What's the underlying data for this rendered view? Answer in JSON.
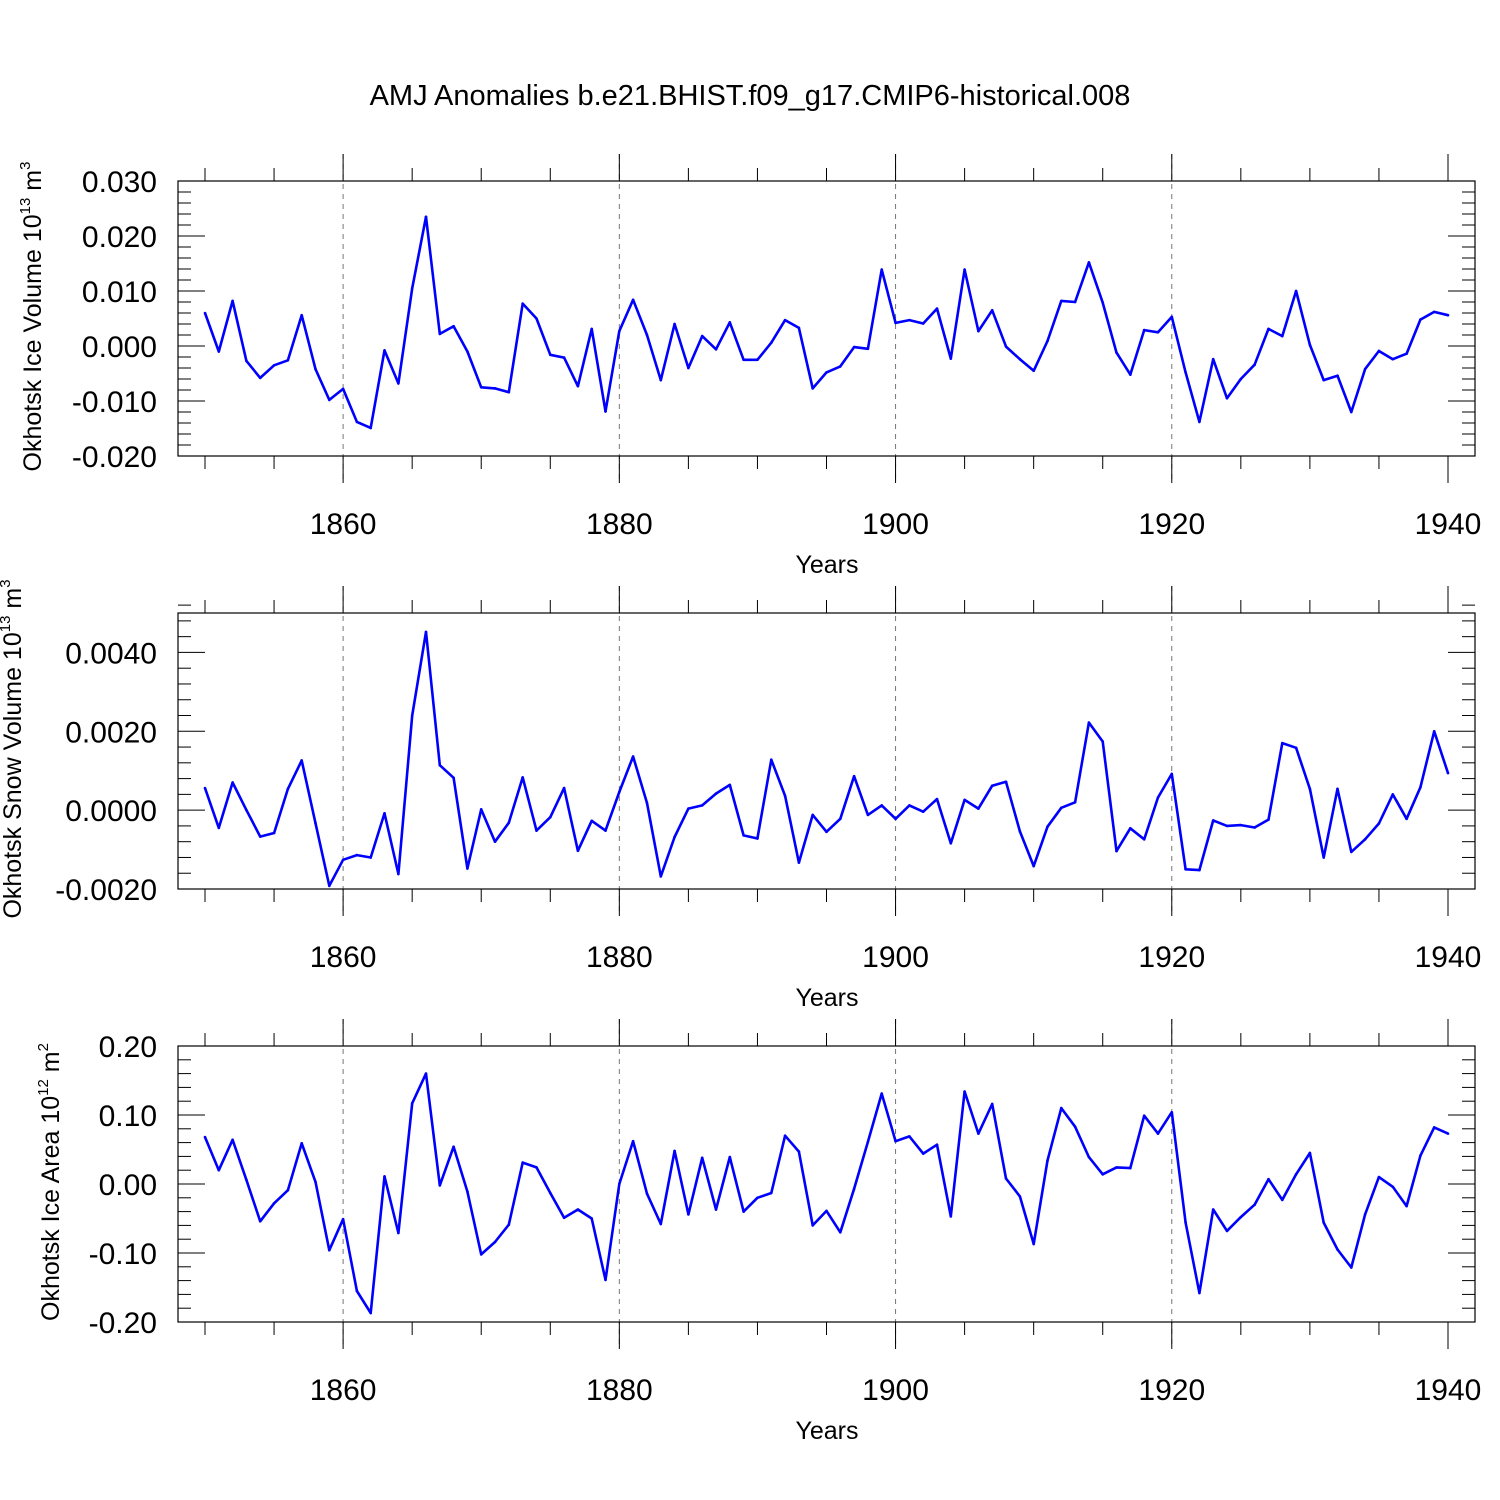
{
  "title": "AMJ Anomalies b.e21.BHIST.f09_g17.CMIP6-historical.008",
  "chart_data": [
    {
      "type": "line",
      "ylabel": "Okhotsk Ice Volume 10",
      "ylabel_exp": "13",
      "ylabel_unit": " m",
      "ylabel_unit_exp": "3",
      "xlabel": "Years",
      "xlim": [
        1850,
        1940
      ],
      "ylim": [
        -0.02,
        0.03
      ],
      "yticks": [
        -0.02,
        -0.01,
        0.0,
        0.01,
        0.02,
        0.03
      ],
      "ytick_labels": [
        "-0.020",
        "-0.010",
        "0.000",
        "0.010",
        "0.020",
        "0.030"
      ],
      "yminor_step": 0.002,
      "xticks": [
        1860,
        1880,
        1900,
        1920,
        1940
      ],
      "xtick_labels": [
        "1860",
        "1880",
        "1900",
        "1920",
        "1940"
      ],
      "xminor_step": 5,
      "grid_x": [
        1860,
        1880,
        1900,
        1920
      ],
      "color": "#0000ff",
      "x_start": 1850,
      "values": [
        0.006,
        -0.001,
        0.0082,
        -0.0027,
        -0.0058,
        -0.0035,
        -0.0026,
        0.0056,
        -0.0042,
        -0.0098,
        -0.0078,
        -0.0138,
        -0.0149,
        -0.0008,
        -0.0068,
        0.0105,
        0.0235,
        0.0022,
        0.0036,
        -0.001,
        -0.0075,
        -0.0077,
        -0.0084,
        0.0077,
        0.005,
        -0.0016,
        -0.0021,
        -0.0073,
        0.0031,
        -0.0119,
        0.0027,
        0.0084,
        0.002,
        -0.0062,
        0.004,
        -0.004,
        0.0018,
        -0.0006,
        0.0043,
        -0.0025,
        -0.0025,
        0.0006,
        0.0047,
        0.0033,
        -0.0077,
        -0.0048,
        -0.0037,
        -0.0002,
        -0.0005,
        0.0139,
        0.0042,
        0.0047,
        0.0041,
        0.0068,
        -0.0023,
        0.0139,
        0.0027,
        0.0065,
        -0.0001,
        -0.0024,
        -0.0045,
        0.0009,
        0.0082,
        0.008,
        0.0152,
        0.0079,
        -0.0012,
        -0.0052,
        0.0029,
        0.0025,
        0.0053,
        -0.0048,
        -0.0138,
        -0.0024,
        -0.0095,
        -0.006,
        -0.0034,
        0.0031,
        0.0018,
        0.01,
        0.0002,
        -0.0062,
        -0.0054,
        -0.012,
        -0.0042,
        -0.0009,
        -0.0024,
        -0.0014,
        0.0048,
        0.0062,
        0.0056
      ]
    },
    {
      "type": "line",
      "ylabel": "Okhotsk Snow Volume 10",
      "ylabel_exp": "13",
      "ylabel_unit": " m",
      "ylabel_unit_exp": "3",
      "xlabel": "Years",
      "xlim": [
        1850,
        1940
      ],
      "ylim": [
        -0.002,
        0.005
      ],
      "yticks": [
        -0.002,
        0.0,
        0.002,
        0.004
      ],
      "ytick_labels": [
        "-0.0020",
        "0.0000",
        "0.0020",
        "0.0040"
      ],
      "yminor_step": 0.0004,
      "xticks": [
        1860,
        1880,
        1900,
        1920,
        1940
      ],
      "xtick_labels": [
        "1860",
        "1880",
        "1900",
        "1920",
        "1940"
      ],
      "xminor_step": 5,
      "grid_x": [
        1860,
        1880,
        1900,
        1920
      ],
      "color": "#0000ff",
      "x_start": 1850,
      "values": [
        0.00056,
        -0.00045,
        0.0007,
        0.0,
        -0.00067,
        -0.00058,
        0.00054,
        0.00126,
        -0.00033,
        -0.00192,
        -0.00126,
        -0.00114,
        -0.0012,
        -8e-05,
        -0.00162,
        0.0024,
        0.00452,
        0.00114,
        0.00082,
        -0.00148,
        2e-05,
        -0.0008,
        -0.00032,
        0.00083,
        -0.00052,
        -0.00018,
        0.00056,
        -0.00103,
        -0.00027,
        -0.00052,
        0.00046,
        0.00136,
        0.00018,
        -0.00168,
        -0.00068,
        4e-05,
        0.00012,
        0.00042,
        0.00064,
        -0.00064,
        -0.00072,
        0.00128,
        0.00036,
        -0.00133,
        -0.00012,
        -0.00055,
        -0.00022,
        0.00086,
        -0.00012,
        0.00012,
        -0.00022,
        0.00012,
        -4e-05,
        0.00028,
        -0.00084,
        0.00026,
        4e-05,
        0.00062,
        0.00072,
        -0.00054,
        -0.00142,
        -0.00042,
        6e-05,
        0.0002,
        0.00222,
        0.00174,
        -0.00104,
        -0.00046,
        -0.00074,
        0.00032,
        0.00092,
        -0.0015,
        -0.00152,
        -0.00026,
        -0.0004,
        -0.00038,
        -0.00044,
        -0.00024,
        0.0017,
        0.00158,
        0.00054,
        -0.0012,
        0.00054,
        -0.00106,
        -0.00074,
        -0.00034,
        0.0004,
        -0.00022,
        0.00058,
        0.002,
        0.00094
      ]
    },
    {
      "type": "line",
      "ylabel": "Okhotsk Ice Area 10",
      "ylabel_exp": "12",
      "ylabel_unit": " m",
      "ylabel_unit_exp": "2",
      "xlabel": "Years",
      "xlim": [
        1850,
        1940
      ],
      "ylim": [
        -0.2,
        0.2
      ],
      "yticks": [
        -0.2,
        -0.1,
        0.0,
        0.1,
        0.2
      ],
      "ytick_labels": [
        "-0.20",
        "-0.10",
        "0.00",
        "0.10",
        "0.20"
      ],
      "yminor_step": 0.02,
      "xticks": [
        1860,
        1880,
        1900,
        1920,
        1940
      ],
      "xtick_labels": [
        "1860",
        "1880",
        "1900",
        "1920",
        "1940"
      ],
      "xminor_step": 5,
      "grid_x": [
        1860,
        1880,
        1900,
        1920
      ],
      "color": "#0000ff",
      "x_start": 1850,
      "values": [
        0.068,
        0.02,
        0.064,
        0.006,
        -0.054,
        -0.028,
        -0.009,
        0.059,
        0.003,
        -0.096,
        -0.051,
        -0.155,
        -0.187,
        0.011,
        -0.071,
        0.117,
        0.16,
        -0.002,
        0.054,
        -0.011,
        -0.102,
        -0.084,
        -0.059,
        0.031,
        0.024,
        -0.013,
        -0.049,
        -0.037,
        -0.05,
        -0.139,
        0.0,
        0.062,
        -0.014,
        -0.058,
        0.048,
        -0.044,
        0.038,
        -0.037,
        0.039,
        -0.04,
        -0.02,
        -0.013,
        0.07,
        0.047,
        -0.06,
        -0.039,
        -0.07,
        -0.007,
        0.061,
        0.131,
        0.062,
        0.069,
        0.044,
        0.057,
        -0.047,
        0.134,
        0.073,
        0.116,
        0.008,
        -0.018,
        -0.087,
        0.034,
        0.11,
        0.083,
        0.039,
        0.014,
        0.024,
        0.023,
        0.099,
        0.073,
        0.104,
        -0.056,
        -0.158,
        -0.037,
        -0.068,
        -0.048,
        -0.03,
        0.007,
        -0.023,
        0.014,
        0.045,
        -0.056,
        -0.095,
        -0.121,
        -0.044,
        0.01,
        -0.004,
        -0.032,
        0.041,
        0.082,
        0.073
      ]
    }
  ]
}
